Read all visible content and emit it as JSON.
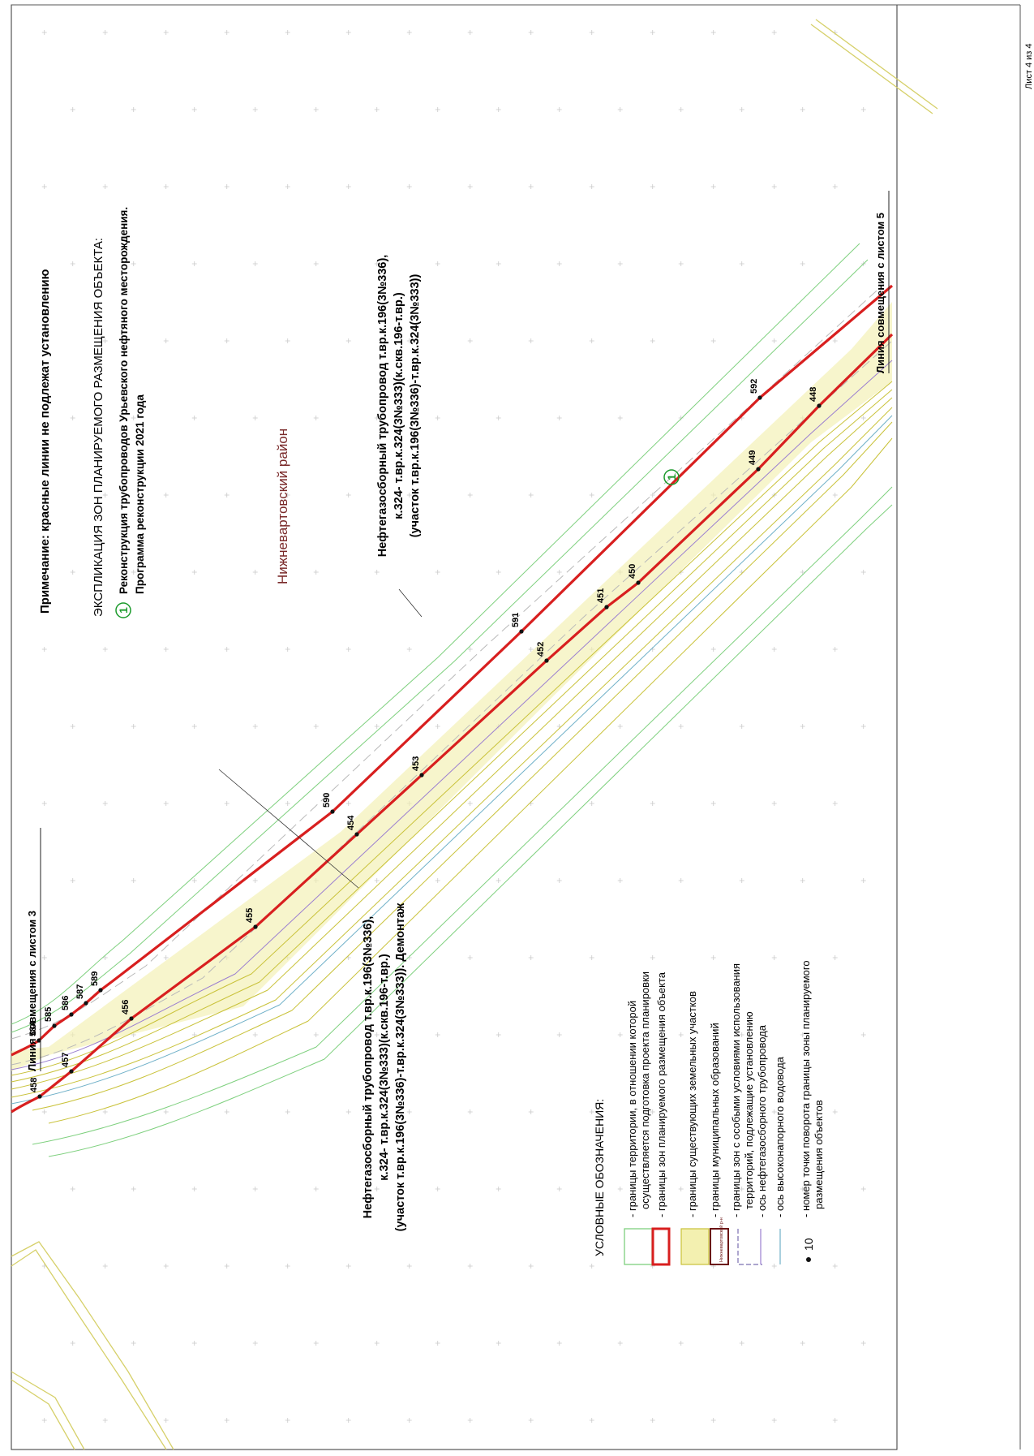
{
  "note": "Примечание: красные линии не подлежат установлению",
  "explication": {
    "title": "ЭКСПЛИКАЦИЯ ЗОН ПЛАНИРУЕМОГО РАЗМЕЩЕНИЯ ОБЪЕКТА:",
    "marker": "1",
    "line1": "Реконструкция трубопроводов Урьевского нефтяного месторождения.",
    "line2": "Программа реконструкции 2021 года"
  },
  "district": "Нижневартовский район",
  "sheet_number": "Лист 4 из 4",
  "match_line_top": "Линия совмещения с листом 3",
  "match_line_bottom": "Линия совмещения с листом 5",
  "zone_marker": "1",
  "pipeline_label_1": {
    "line1": "Нефтегазосборный трубопровод т.вр.к.196(3№336),",
    "line2": "к.324- т.вр.к.324(3№333)(к.скв.196-т.вр.)",
    "line3": "(участок т.вр.к.196(3№336)-т.вр.к.324(3№333))"
  },
  "pipeline_label_2": {
    "line1": "Нефтегазосборный трубопровод т.вр.к.196(3№336),",
    "line2": "к.324- т.вр.к.324(3№333)(к.скв.196-т.вр.)",
    "line3": "(участок т.вр.к.196(3№336)-т.вр.к.324(3№333)). Демонтаж"
  },
  "points_upper": [
    "584",
    "585",
    "586",
    "587",
    "589",
    "590",
    "591",
    "592"
  ],
  "points_lower": [
    "458",
    "457",
    "456",
    "455",
    "454",
    "453",
    "452",
    "451",
    "450",
    "449",
    "448"
  ],
  "legend": {
    "title": "УСЛОВНЫЕ ОБОЗНАЧЕНИЯ:",
    "items": [
      {
        "line1": "- границы территории, в отношении которой",
        "line2": "осуществляется подготовка проекта планировки",
        "color": "#7ed07e"
      },
      {
        "line1": "- границы зон планируемого размещения объекта",
        "line2": "",
        "color": "#d81f1f"
      },
      {
        "line1": "- границы существующих земельных участков",
        "line2": "",
        "color": "#c9c23a"
      },
      {
        "line1": "- границы муниципальных образований",
        "line2": "",
        "color": "#6b1414"
      },
      {
        "line1": "- границы зон с особыми условиями использования",
        "line2": "территорий, подлежащие установлению",
        "color": "#7a6fb0"
      },
      {
        "line1": "- ось нефтегазосборного трубопровода",
        "line2": "",
        "color": "#9b7fd0"
      },
      {
        "line1": "- ось высоконапорного водовода",
        "line2": "",
        "color": "#6fb0c8"
      },
      {
        "line1": "- номер точки поворота границы зоны планируемого",
        "line2": "размещения объектов",
        "color": "#111111"
      }
    ],
    "inset_label": "Нижневартовский р-н",
    "point_sample": "10"
  },
  "colors": {
    "red_line": "#d81f1f",
    "green_line": "#7ed07e",
    "yellow_line": "#c9c23a",
    "purple_line": "#9b7fd0",
    "grey_dash": "#b9b9b9",
    "district_text": "#7a2a2a",
    "zone_marker": "#1b9a2b"
  }
}
